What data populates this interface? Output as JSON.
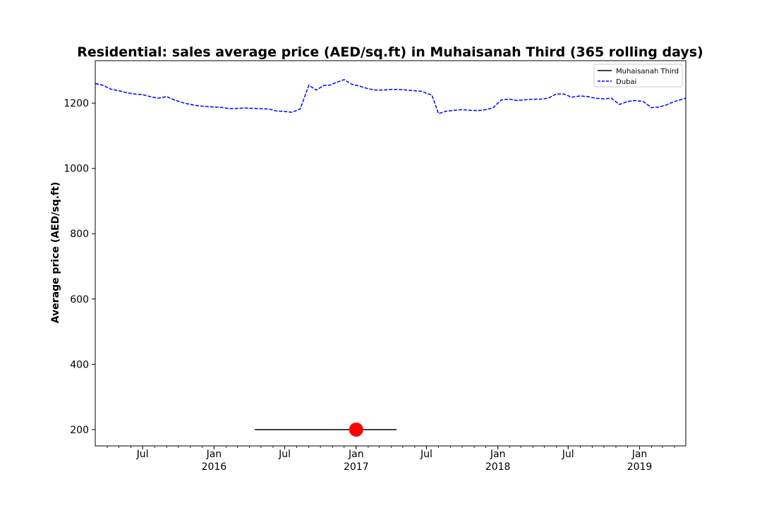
{
  "chart_data": {
    "type": "line",
    "title": "Residential: sales average price (AED/sq.ft) in Muhaisanah Third (365 rolling days)",
    "xlabel": "",
    "ylabel": "Average price (AED/sq.ft)",
    "xlim": [
      "2015-03-01",
      "2019-04-30"
    ],
    "ylim": [
      150,
      1330
    ],
    "y_ticks": [
      200,
      400,
      600,
      800,
      1000,
      1200
    ],
    "x_ticks": [
      {
        "date": "2015-07-01",
        "label": "Jul",
        "year": ""
      },
      {
        "date": "2016-01-01",
        "label": "Jan",
        "year": "2016"
      },
      {
        "date": "2016-07-01",
        "label": "Jul",
        "year": ""
      },
      {
        "date": "2017-01-01",
        "label": "Jan",
        "year": "2017"
      },
      {
        "date": "2017-07-01",
        "label": "Jul",
        "year": ""
      },
      {
        "date": "2018-01-01",
        "label": "Jan",
        "year": "2018"
      },
      {
        "date": "2018-07-01",
        "label": "Jul",
        "year": ""
      },
      {
        "date": "2019-01-01",
        "label": "Jan",
        "year": "2019"
      }
    ],
    "grid": false,
    "legend_position": "top-right",
    "series": [
      {
        "name": "Muhaisanah Third",
        "color": "#000000",
        "style": "solid",
        "x": [
          "2016-04-15",
          "2017-04-15"
        ],
        "y": [
          200,
          200
        ]
      },
      {
        "name": "Dubai",
        "color": "#0000ff",
        "style": "dashed",
        "x": [
          "2015-03-01",
          "2015-03-20",
          "2015-04-10",
          "2015-05-01",
          "2015-05-20",
          "2015-06-10",
          "2015-07-01",
          "2015-07-20",
          "2015-08-10",
          "2015-09-01",
          "2015-09-20",
          "2015-10-10",
          "2015-11-01",
          "2015-11-20",
          "2015-12-10",
          "2016-01-01",
          "2016-01-20",
          "2016-02-10",
          "2016-03-01",
          "2016-03-20",
          "2016-04-10",
          "2016-05-01",
          "2016-05-20",
          "2016-06-10",
          "2016-06-25",
          "2016-07-05",
          "2016-07-20",
          "2016-08-10",
          "2016-09-01",
          "2016-09-20",
          "2016-10-10",
          "2016-10-25",
          "2016-11-10",
          "2016-12-01",
          "2016-12-20",
          "2017-01-10",
          "2017-02-01",
          "2017-02-20",
          "2017-03-10",
          "2017-04-01",
          "2017-04-20",
          "2017-05-10",
          "2017-06-01",
          "2017-06-20",
          "2017-07-01",
          "2017-07-15",
          "2017-08-01",
          "2017-08-20",
          "2017-09-10",
          "2017-10-01",
          "2017-10-20",
          "2017-11-10",
          "2017-12-01",
          "2017-12-20",
          "2018-01-10",
          "2018-02-01",
          "2018-02-20",
          "2018-03-10",
          "2018-04-01",
          "2018-04-20",
          "2018-05-10",
          "2018-06-01",
          "2018-06-20",
          "2018-07-10",
          "2018-08-01",
          "2018-08-20",
          "2018-09-10",
          "2018-10-01",
          "2018-10-20",
          "2018-11-10",
          "2018-12-01",
          "2018-12-20",
          "2019-01-10",
          "2019-02-01",
          "2019-02-20",
          "2019-03-10",
          "2019-04-01",
          "2019-04-30"
        ],
        "y": [
          1260,
          1255,
          1243,
          1238,
          1232,
          1228,
          1226,
          1220,
          1215,
          1220,
          1210,
          1202,
          1196,
          1192,
          1190,
          1188,
          1187,
          1183,
          1184,
          1185,
          1184,
          1183,
          1182,
          1176,
          1175,
          1174,
          1172,
          1182,
          1255,
          1240,
          1254,
          1255,
          1263,
          1272,
          1258,
          1252,
          1244,
          1240,
          1240,
          1242,
          1242,
          1240,
          1238,
          1236,
          1230,
          1225,
          1168,
          1175,
          1178,
          1180,
          1178,
          1177,
          1180,
          1186,
          1210,
          1212,
          1208,
          1210,
          1212,
          1212,
          1215,
          1228,
          1228,
          1218,
          1222,
          1220,
          1215,
          1213,
          1215,
          1196,
          1205,
          1208,
          1205,
          1186,
          1188,
          1194,
          1205,
          1215
        ]
      }
    ],
    "markers": [
      {
        "x": "2017-01-01",
        "y": 200,
        "color": "#ff0000",
        "shape": "circle"
      }
    ]
  }
}
